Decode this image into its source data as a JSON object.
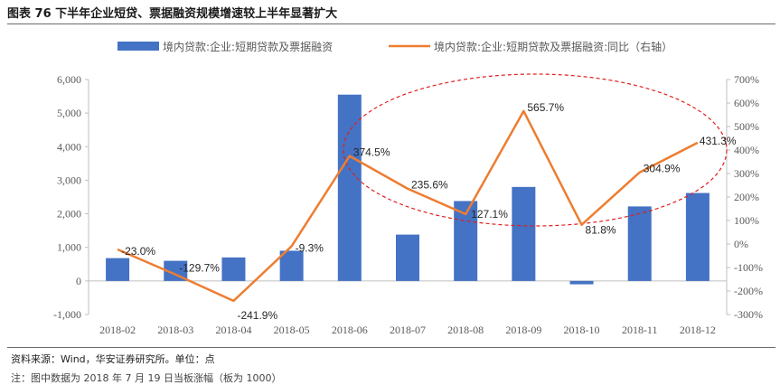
{
  "title": "图表 76  下半年企业短贷、票据融资规模增速较上半年显著扩大",
  "source": "资料来源：Wind，华安证券研究所。单位：点",
  "note": "注：图中数据为 2018 年 7 月 19 日当板涨幅（板为 1000）",
  "colors": {
    "bar": "#4472C4",
    "line": "#ED7D31",
    "ellipse": "#E0201E"
  },
  "chart_data": {
    "type": "bar+line",
    "categories": [
      "2018-02",
      "2018-03",
      "2018-04",
      "2018-05",
      "2018-06",
      "2018-07",
      "2018-08",
      "2018-09",
      "2018-10",
      "2018-11",
      "2018-12"
    ],
    "series": [
      {
        "name": "境内贷款:企业:短期贷款及票据融资",
        "type": "bar",
        "axis": "left",
        "values": [
          680,
          600,
          700,
          900,
          5550,
          1380,
          2380,
          2800,
          -100,
          2220,
          2620
        ]
      },
      {
        "name": "境内贷款:企业:短期贷款及票据融资:同比（右轴）",
        "type": "line",
        "axis": "right",
        "values": [
          -23.0,
          -129.7,
          -241.9,
          -9.3,
          374.5,
          235.6,
          127.1,
          565.7,
          81.8,
          304.9,
          431.3
        ],
        "labels": [
          "-23.0%",
          "-129.7%",
          "-241.9%",
          "-9.3%",
          "374.5%",
          "235.6%",
          "127.1%",
          "565.7%",
          "81.8%",
          "304.9%",
          "431.3%"
        ]
      }
    ],
    "left_axis": {
      "min": -1000,
      "max": 6000,
      "ticks": [
        "-1,000",
        "0",
        "1,000",
        "2,000",
        "3,000",
        "4,000",
        "5,000",
        "6,000"
      ],
      "values": [
        -1000,
        0,
        1000,
        2000,
        3000,
        4000,
        5000,
        6000
      ]
    },
    "right_axis": {
      "min": -300,
      "max": 700,
      "ticks": [
        "-300%",
        "-200%",
        "-100%",
        "0%",
        "100%",
        "200%",
        "300%",
        "400%",
        "500%",
        "600%",
        "700%"
      ],
      "values": [
        -300,
        -200,
        -100,
        0,
        100,
        200,
        300,
        400,
        500,
        600,
        700
      ]
    },
    "legend_position": "top",
    "grid": false,
    "annotation": "dashed ellipse highlighting 2018-06 to 2018-12"
  }
}
